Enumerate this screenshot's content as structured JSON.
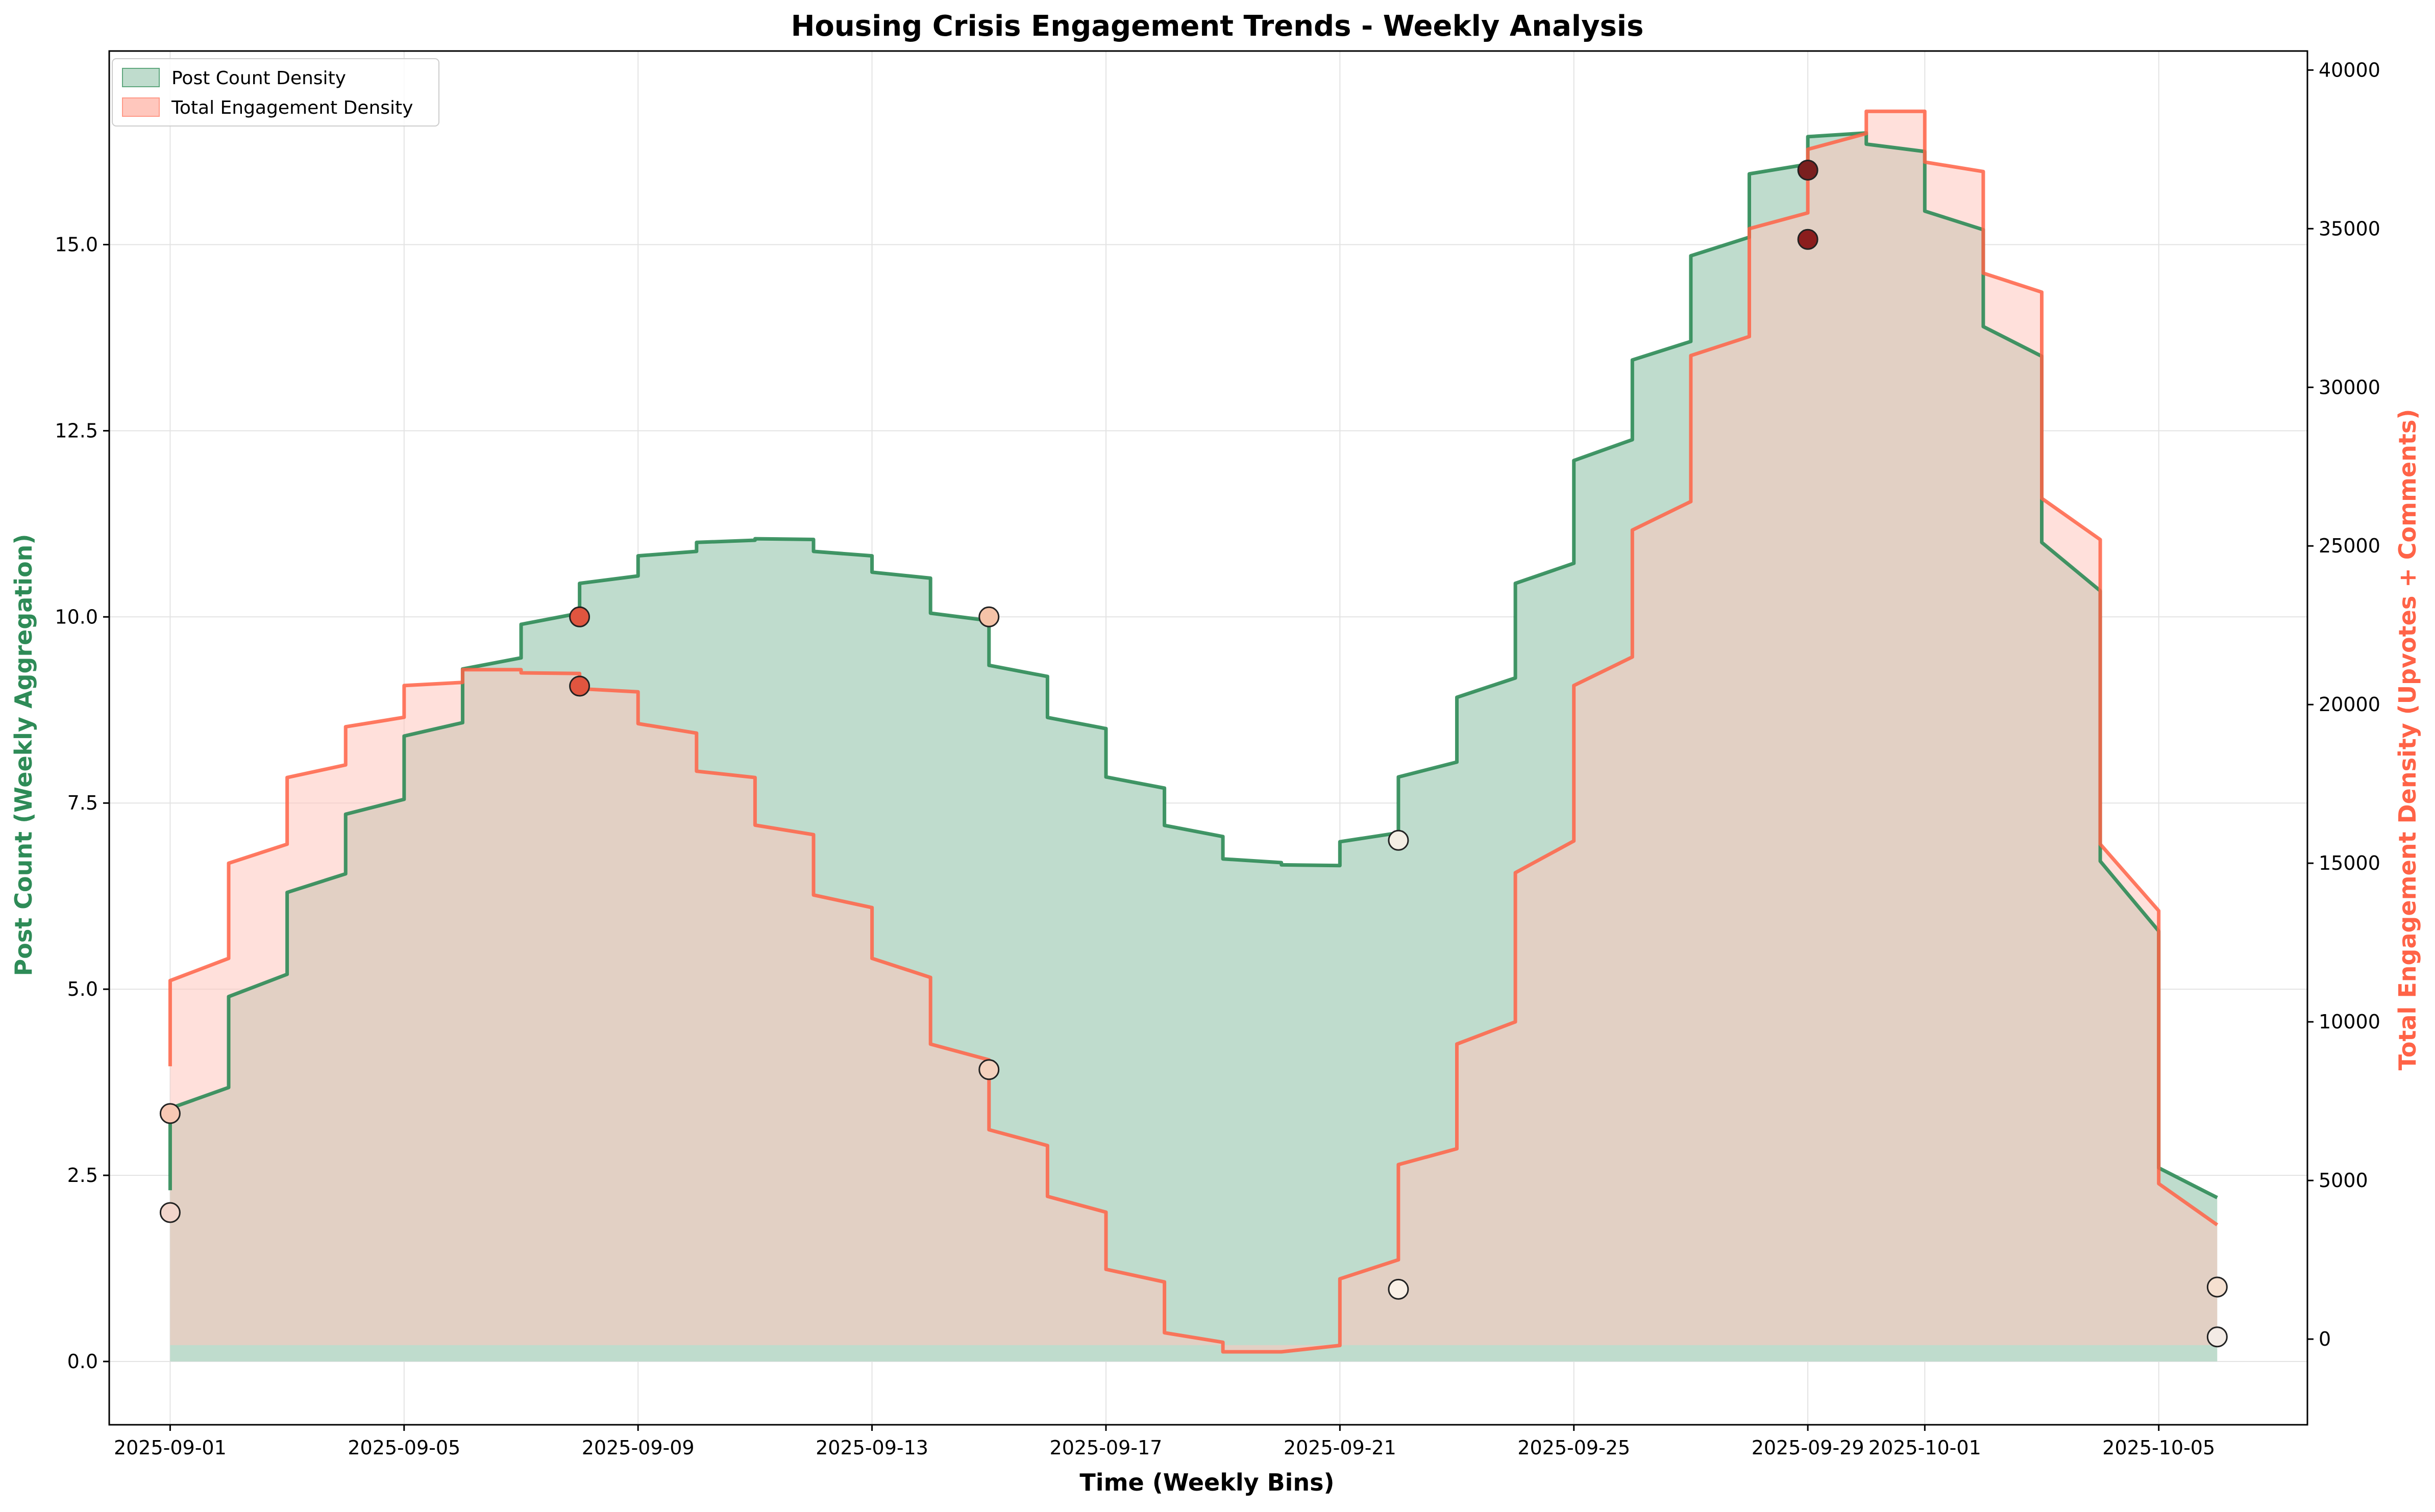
{
  "chart_data": {
    "type": "area",
    "title": "Housing Crisis Engagement Trends - Weekly Analysis",
    "xlabel": "Time (Weekly Bins)",
    "ylabel": "Post Count (Weekly Aggregation)",
    "y2label": "Total Engagement Density (Upvotes + Comments)",
    "x_tick_labels": [
      "2025-09-01",
      "2025-09-05",
      "2025-09-09",
      "2025-09-13",
      "2025-09-17",
      "2025-09-21",
      "2025-09-25",
      "2025-09-29",
      "2025-10-01",
      "2025-10-05"
    ],
    "x_tick_dates": [
      "2025-09-01",
      "2025-09-05",
      "2025-09-09",
      "2025-09-13",
      "2025-09-17",
      "2025-09-21",
      "2025-09-25",
      "2025-09-29",
      "2025-10-01",
      "2025-10-05"
    ],
    "y_ticks": [
      "0.0",
      "2.5",
      "5.0",
      "7.5",
      "10.0",
      "12.5",
      "15.0"
    ],
    "y2_ticks": [
      "0",
      "5000",
      "10000",
      "15000",
      "20000",
      "25000",
      "30000",
      "35000",
      "40000"
    ],
    "ylim": [
      -0.85,
      17.6
    ],
    "y2lim": [
      -2700,
      40600
    ],
    "xlim": [
      "2025-08-30T23:00",
      "2025-10-07T13:00"
    ],
    "grid": true,
    "legend_position": "top-left",
    "colors": {
      "posts": "#2e8b57",
      "engagement": "#ff6347",
      "posts_fill": "#bfdccd",
      "engagement_fill": "#ffc7bd",
      "overlap_fill": "#cfb3a0"
    },
    "series": [
      {
        "name": "Post Count Density",
        "axis": "left",
        "x": [
          "2025-09-01",
          "2025-09-02",
          "2025-09-03",
          "2025-09-04",
          "2025-09-05",
          "2025-09-06",
          "2025-09-07",
          "2025-09-08",
          "2025-09-09",
          "2025-09-10",
          "2025-09-11",
          "2025-09-12",
          "2025-09-13",
          "2025-09-14",
          "2025-09-15",
          "2025-09-16",
          "2025-09-17",
          "2025-09-18",
          "2025-09-19",
          "2025-09-20",
          "2025-09-21",
          "2025-09-22",
          "2025-09-23",
          "2025-09-24",
          "2025-09-25",
          "2025-09-26",
          "2025-09-27",
          "2025-09-28",
          "2025-09-29",
          "2025-09-30",
          "2025-10-01",
          "2025-10-02",
          "2025-10-03",
          "2025-10-04",
          "2025-10-05",
          "2025-10-06"
        ],
        "values": [
          3.4,
          4.9,
          6.3,
          7.35,
          8.4,
          9.3,
          9.9,
          10.45,
          10.82,
          11.0,
          11.05,
          10.88,
          10.6,
          10.05,
          9.35,
          8.65,
          7.85,
          7.2,
          6.75,
          6.67,
          6.98,
          7.85,
          8.92,
          10.45,
          12.1,
          13.45,
          14.85,
          15.95,
          16.45,
          16.35,
          15.45,
          13.9,
          11.0,
          6.72,
          2.6,
          2.2
        ],
        "end_values": [
          3.68,
          5.2,
          6.55,
          7.55,
          8.58,
          9.45,
          10.05,
          10.55,
          10.88,
          11.03,
          11.04,
          10.82,
          10.52,
          9.95,
          9.2,
          8.5,
          7.7,
          7.05,
          6.7,
          6.66,
          7.1,
          8.05,
          9.18,
          10.72,
          12.38,
          13.7,
          15.1,
          16.08,
          16.5,
          16.25,
          15.2,
          13.5,
          10.35,
          5.78,
          2.2,
          2.2
        ],
        "start_value": 2.3
      },
      {
        "name": "Total Engagement Density",
        "axis": "right",
        "x": [
          "2025-09-01",
          "2025-09-02",
          "2025-09-03",
          "2025-09-04",
          "2025-09-05",
          "2025-09-06",
          "2025-09-07",
          "2025-09-08",
          "2025-09-09",
          "2025-09-10",
          "2025-09-11",
          "2025-09-12",
          "2025-09-13",
          "2025-09-14",
          "2025-09-15",
          "2025-09-16",
          "2025-09-17",
          "2025-09-18",
          "2025-09-19",
          "2025-09-20",
          "2025-09-21",
          "2025-09-22",
          "2025-09-23",
          "2025-09-24",
          "2025-09-25",
          "2025-09-26",
          "2025-09-27",
          "2025-09-28",
          "2025-09-29",
          "2025-09-30",
          "2025-10-01",
          "2025-10-02",
          "2025-10-03",
          "2025-10-04",
          "2025-10-05",
          "2025-10-06"
        ],
        "values": [
          11300,
          15000,
          17700,
          19300,
          20600,
          21100,
          21000,
          20500,
          19400,
          17900,
          16200,
          14000,
          12000,
          9300,
          6600,
          4500,
          2200,
          200,
          -400,
          -400,
          1900,
          5500,
          9300,
          14700,
          20600,
          25500,
          31000,
          35000,
          37500,
          38700,
          37100,
          33600,
          26500,
          15600,
          4900,
          3600
        ],
        "end_values": [
          12000,
          15600,
          18100,
          19600,
          20700,
          21100,
          20980,
          20400,
          19100,
          17700,
          15900,
          13600,
          11400,
          8800,
          6100,
          4000,
          1800,
          -100,
          -400,
          -200,
          2500,
          6000,
          10000,
          15700,
          21500,
          26400,
          31600,
          35500,
          38000,
          38700,
          36800,
          33000,
          25200,
          13500,
          3600,
          3600
        ],
        "start_value": 8600
      }
    ],
    "markers": [
      {
        "axis": "left",
        "x": "2025-09-01",
        "y": 3.33,
        "shade": "#f7c8b4"
      },
      {
        "axis": "left",
        "x": "2025-09-01",
        "y": 2.0,
        "shade": "#f2d6cc"
      },
      {
        "axis": "left",
        "x": "2025-09-08",
        "y": 10.0,
        "shade": "#e0553f"
      },
      {
        "axis": "left",
        "x": "2025-09-08",
        "y": 9.07,
        "shade": "#e0553f"
      },
      {
        "axis": "left",
        "x": "2025-09-15",
        "y": 10.0,
        "shade": "#f5c3a8"
      },
      {
        "axis": "left",
        "x": "2025-09-15",
        "y": 3.92,
        "shade": "#f5d2be"
      },
      {
        "axis": "left",
        "x": "2025-09-22",
        "y": 7.0,
        "shade": "#f4eee4"
      },
      {
        "axis": "left",
        "x": "2025-09-22",
        "y": 0.97,
        "shade": "#faf0e6"
      },
      {
        "axis": "left",
        "x": "2025-09-29",
        "y": 16.0,
        "shade": "#7a1f1f"
      },
      {
        "axis": "left",
        "x": "2025-09-29",
        "y": 15.07,
        "shade": "#8b1d1d"
      },
      {
        "axis": "left",
        "x": "2025-10-06",
        "y": 1.0,
        "shade": "#f5e0d0"
      },
      {
        "axis": "left",
        "x": "2025-10-06",
        "y": 0.33,
        "shade": "#f3ebe5"
      }
    ]
  }
}
